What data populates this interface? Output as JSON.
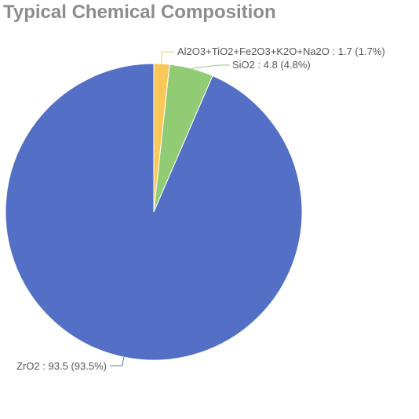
{
  "chart_data": {
    "type": "pie",
    "title": "Typical Chemical Composition",
    "slices": [
      {
        "name": "Al2O3+TiO2+Fe2O3+K2O+Na2O",
        "value": 1.7,
        "label": "Al2O3+TiO2+Fe2O3+K2O+Na2O : 1.7 (1.7%)",
        "color": "#fac858"
      },
      {
        "name": "SiO2",
        "value": 4.8,
        "label": "SiO2 : 4.8 (4.8%)",
        "color": "#91cc75"
      },
      {
        "name": "ZrO2",
        "value": 93.5,
        "label": "ZrO2 : 93.5 (93.5%)",
        "color": "#5470c6"
      }
    ]
  }
}
